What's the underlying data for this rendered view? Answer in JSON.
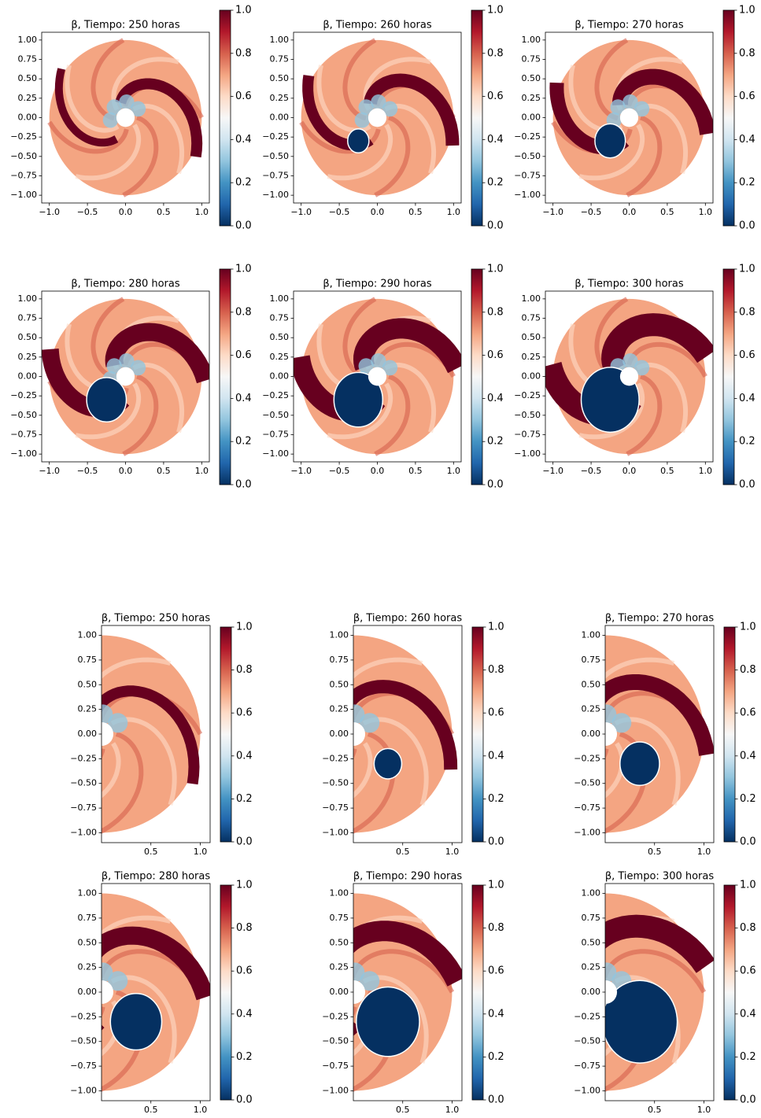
{
  "chart_data": [
    {
      "type": "field",
      "title": "β, Tiempo: 250 horas",
      "xlim": [
        -1.1,
        1.1
      ],
      "ylim": [
        -1.1,
        1.1
      ],
      "xticks": [
        {
          "value": -1,
          "label": "−1.0"
        },
        {
          "value": -0.5,
          "label": "−0.5"
        },
        {
          "value": 0,
          "label": "0.0"
        },
        0.5,
        {
          "value": 1,
          "label": "1.0"
        }
      ],
      "yticks": [
        {
          "value": 1,
          "label": "1.00"
        },
        0.75,
        {
          "value": 0.5,
          "label": "0.50"
        },
        0.25,
        {
          "value": 0,
          "label": "0.00"
        },
        {
          "value": -0.25,
          "label": "−0.25"
        },
        {
          "value": -0.5,
          "label": "−0.50"
        },
        {
          "value": -0.75,
          "label": "−0.75"
        },
        {
          "value": -1,
          "label": "−1.00"
        }
      ],
      "colorbar": {
        "lim": [
          0,
          1
        ],
        "ticks": [
          {
            "value": 0,
            "label": "0.0"
          },
          0.2,
          0.4,
          0.6,
          0.8,
          {
            "value": 1,
            "label": "1.0"
          }
        ],
        "colormap": "RdBu_r"
      }
    },
    {
      "type": "field",
      "title": "β, Tiempo: 260 horas",
      "xlim": [
        -1.1,
        1.1
      ],
      "ylim": [
        -1.1,
        1.1
      ],
      "xticks": [
        {
          "value": -1,
          "label": "−1.0"
        },
        {
          "value": -0.5,
          "label": "−0.5"
        },
        {
          "value": 0,
          "label": "0.0"
        },
        0.5,
        {
          "value": 1,
          "label": "1.0"
        }
      ],
      "yticks": [
        {
          "value": 1,
          "label": "1.00"
        },
        0.75,
        {
          "value": 0.5,
          "label": "0.50"
        },
        0.25,
        {
          "value": 0,
          "label": "0.00"
        },
        {
          "value": -0.25,
          "label": "−0.25"
        },
        {
          "value": -0.5,
          "label": "−0.50"
        },
        {
          "value": -0.75,
          "label": "−0.75"
        },
        {
          "value": -1,
          "label": "−1.00"
        }
      ],
      "colorbar": {
        "lim": [
          0,
          1
        ],
        "ticks": [
          {
            "value": 0,
            "label": "0.0"
          },
          0.2,
          0.4,
          0.6,
          0.8,
          {
            "value": 1,
            "label": "1.0"
          }
        ],
        "colormap": "RdBu_r"
      }
    },
    {
      "type": "field",
      "title": "β, Tiempo: 270 horas",
      "xlim": [
        -1.1,
        1.1
      ],
      "ylim": [
        -1.1,
        1.1
      ],
      "xticks": [
        {
          "value": -1,
          "label": "−1.0"
        },
        {
          "value": -0.5,
          "label": "−0.5"
        },
        {
          "value": 0,
          "label": "0.0"
        },
        0.5,
        {
          "value": 1,
          "label": "1.0"
        }
      ],
      "yticks": [
        {
          "value": 1,
          "label": "1.00"
        },
        0.75,
        {
          "value": 0.5,
          "label": "0.50"
        },
        0.25,
        {
          "value": 0,
          "label": "0.00"
        },
        {
          "value": -0.25,
          "label": "−0.25"
        },
        {
          "value": -0.5,
          "label": "−0.50"
        },
        {
          "value": -0.75,
          "label": "−0.75"
        },
        {
          "value": -1,
          "label": "−1.00"
        }
      ],
      "colorbar": {
        "lim": [
          0,
          1
        ],
        "ticks": [
          {
            "value": 0,
            "label": "0.0"
          },
          0.2,
          0.4,
          0.6,
          0.8,
          {
            "value": 1,
            "label": "1.0"
          }
        ],
        "colormap": "RdBu_r"
      }
    },
    {
      "type": "field",
      "title": "β, Tiempo: 280 horas",
      "xlim": [
        -1.1,
        1.1
      ],
      "ylim": [
        -1.1,
        1.1
      ],
      "xticks": [
        {
          "value": -1,
          "label": "−1.0"
        },
        {
          "value": -0.5,
          "label": "−0.5"
        },
        {
          "value": 0,
          "label": "0.0"
        },
        0.5,
        {
          "value": 1,
          "label": "1.0"
        }
      ],
      "yticks": [
        {
          "value": 1,
          "label": "1.00"
        },
        0.75,
        {
          "value": 0.5,
          "label": "0.50"
        },
        0.25,
        {
          "value": 0,
          "label": "0.00"
        },
        {
          "value": -0.25,
          "label": "−0.25"
        },
        {
          "value": -0.5,
          "label": "−0.50"
        },
        {
          "value": -0.75,
          "label": "−0.75"
        },
        {
          "value": -1,
          "label": "−1.00"
        }
      ],
      "colorbar": {
        "lim": [
          0,
          1
        ],
        "ticks": [
          {
            "value": 0,
            "label": "0.0"
          },
          0.2,
          0.4,
          0.6,
          0.8,
          {
            "value": 1,
            "label": "1.0"
          }
        ],
        "colormap": "RdBu_r"
      }
    },
    {
      "type": "field",
      "title": "β, Tiempo: 290 horas",
      "xlim": [
        -1.1,
        1.1
      ],
      "ylim": [
        -1.1,
        1.1
      ],
      "xticks": [
        {
          "value": -1,
          "label": "−1.0"
        },
        {
          "value": -0.5,
          "label": "−0.5"
        },
        {
          "value": 0,
          "label": "0.0"
        },
        0.5,
        {
          "value": 1,
          "label": "1.0"
        }
      ],
      "yticks": [
        {
          "value": 1,
          "label": "1.00"
        },
        0.75,
        {
          "value": 0.5,
          "label": "0.50"
        },
        0.25,
        {
          "value": 0,
          "label": "0.00"
        },
        {
          "value": -0.25,
          "label": "−0.25"
        },
        {
          "value": -0.5,
          "label": "−0.50"
        },
        {
          "value": -0.75,
          "label": "−0.75"
        },
        {
          "value": -1,
          "label": "−1.00"
        }
      ],
      "colorbar": {
        "lim": [
          0,
          1
        ],
        "ticks": [
          {
            "value": 0,
            "label": "0.0"
          },
          0.2,
          0.4,
          0.6,
          0.8,
          {
            "value": 1,
            "label": "1.0"
          }
        ],
        "colormap": "RdBu_r"
      }
    },
    {
      "type": "field",
      "title": "β, Tiempo: 300 horas",
      "xlim": [
        -1.1,
        1.1
      ],
      "ylim": [
        -1.1,
        1.1
      ],
      "xticks": [
        {
          "value": -1,
          "label": "−1.0"
        },
        {
          "value": -0.5,
          "label": "−0.5"
        },
        {
          "value": 0,
          "label": "0.0"
        },
        0.5,
        {
          "value": 1,
          "label": "1.0"
        }
      ],
      "yticks": [
        {
          "value": 1,
          "label": "1.00"
        },
        0.75,
        {
          "value": 0.5,
          "label": "0.50"
        },
        0.25,
        {
          "value": 0,
          "label": "0.00"
        },
        {
          "value": -0.25,
          "label": "−0.25"
        },
        {
          "value": -0.5,
          "label": "−0.50"
        },
        {
          "value": -0.75,
          "label": "−0.75"
        },
        {
          "value": -1,
          "label": "−1.00"
        }
      ],
      "colorbar": {
        "lim": [
          0,
          1
        ],
        "ticks": [
          {
            "value": 0,
            "label": "0.0"
          },
          0.2,
          0.4,
          0.6,
          0.8,
          {
            "value": 1,
            "label": "1.0"
          }
        ],
        "colormap": "RdBu_r"
      }
    },
    {
      "type": "field",
      "title": "β, Tiempo: 250 horas",
      "xlim": [
        0,
        1.1
      ],
      "ylim": [
        -1.1,
        1.1
      ],
      "xticks": [
        0.5,
        {
          "value": 1,
          "label": "1.0"
        }
      ],
      "yticks": [
        {
          "value": 1,
          "label": "1.00"
        },
        0.75,
        {
          "value": 0.5,
          "label": "0.50"
        },
        0.25,
        {
          "value": 0,
          "label": "0.00"
        },
        {
          "value": -0.25,
          "label": "−0.25"
        },
        {
          "value": -0.5,
          "label": "−0.50"
        },
        {
          "value": -0.75,
          "label": "−0.75"
        },
        {
          "value": -1,
          "label": "−1.00"
        }
      ],
      "colorbar": {
        "lim": [
          0,
          1
        ],
        "ticks": [
          {
            "value": 0,
            "label": "0.0"
          },
          0.2,
          0.4,
          0.6,
          0.8,
          {
            "value": 1,
            "label": "1.0"
          }
        ],
        "colormap": "RdBu_r"
      }
    },
    {
      "type": "field",
      "title": "β, Tiempo: 260 horas",
      "xlim": [
        0,
        1.1
      ],
      "ylim": [
        -1.1,
        1.1
      ],
      "xticks": [
        0.5,
        {
          "value": 1,
          "label": "1.0"
        }
      ],
      "yticks": [
        {
          "value": 1,
          "label": "1.00"
        },
        0.75,
        {
          "value": 0.5,
          "label": "0.50"
        },
        0.25,
        {
          "value": 0,
          "label": "0.00"
        },
        {
          "value": -0.25,
          "label": "−0.25"
        },
        {
          "value": -0.5,
          "label": "−0.50"
        },
        {
          "value": -0.75,
          "label": "−0.75"
        },
        {
          "value": -1,
          "label": "−1.00"
        }
      ],
      "colorbar": {
        "lim": [
          0,
          1
        ],
        "ticks": [
          {
            "value": 0,
            "label": "0.0"
          },
          0.2,
          0.4,
          0.6,
          0.8,
          {
            "value": 1,
            "label": "1.0"
          }
        ],
        "colormap": "RdBu_r"
      }
    },
    {
      "type": "field",
      "title": "β, Tiempo: 270 horas",
      "xlim": [
        0,
        1.1
      ],
      "ylim": [
        -1.1,
        1.1
      ],
      "xticks": [
        0.5,
        {
          "value": 1,
          "label": "1.0"
        }
      ],
      "yticks": [
        {
          "value": 1,
          "label": "1.00"
        },
        0.75,
        {
          "value": 0.5,
          "label": "0.50"
        },
        0.25,
        {
          "value": 0,
          "label": "0.00"
        },
        {
          "value": -0.25,
          "label": "−0.25"
        },
        {
          "value": -0.5,
          "label": "−0.50"
        },
        {
          "value": -0.75,
          "label": "−0.75"
        },
        {
          "value": -1,
          "label": "−1.00"
        }
      ],
      "colorbar": {
        "lim": [
          0,
          1
        ],
        "ticks": [
          {
            "value": 0,
            "label": "0.0"
          },
          0.2,
          0.4,
          0.6,
          0.8,
          {
            "value": 1,
            "label": "1.0"
          }
        ],
        "colormap": "RdBu_r"
      }
    },
    {
      "type": "field",
      "title": "β, Tiempo: 280 horas",
      "xlim": [
        0,
        1.1
      ],
      "ylim": [
        -1.1,
        1.1
      ],
      "xticks": [
        0.5,
        {
          "value": 1,
          "label": "1.0"
        }
      ],
      "yticks": [
        {
          "value": 1,
          "label": "1.00"
        },
        0.75,
        {
          "value": 0.5,
          "label": "0.50"
        },
        0.25,
        {
          "value": 0,
          "label": "0.00"
        },
        {
          "value": -0.25,
          "label": "−0.25"
        },
        {
          "value": -0.5,
          "label": "−0.50"
        },
        {
          "value": -0.75,
          "label": "−0.75"
        },
        {
          "value": -1,
          "label": "−1.00"
        }
      ],
      "colorbar": {
        "lim": [
          0,
          1
        ],
        "ticks": [
          {
            "value": 0,
            "label": "0.0"
          },
          0.2,
          0.4,
          0.6,
          0.8,
          {
            "value": 1,
            "label": "1.0"
          }
        ],
        "colormap": "RdBu_r"
      }
    },
    {
      "type": "field",
      "title": "β, Tiempo: 290 horas",
      "xlim": [
        0,
        1.1
      ],
      "ylim": [
        -1.1,
        1.1
      ],
      "xticks": [
        0.5,
        {
          "value": 1,
          "label": "1.0"
        }
      ],
      "yticks": [
        {
          "value": 1,
          "label": "1.00"
        },
        0.75,
        {
          "value": 0.5,
          "label": "0.50"
        },
        0.25,
        {
          "value": 0,
          "label": "0.00"
        },
        {
          "value": -0.25,
          "label": "−0.25"
        },
        {
          "value": -0.5,
          "label": "−0.50"
        },
        {
          "value": -0.75,
          "label": "−0.75"
        },
        {
          "value": -1,
          "label": "−1.00"
        }
      ],
      "colorbar": {
        "lim": [
          0,
          1
        ],
        "ticks": [
          {
            "value": 0,
            "label": "0.0"
          },
          0.2,
          0.4,
          0.6,
          0.8,
          {
            "value": 1,
            "label": "1.0"
          }
        ],
        "colormap": "RdBu_r"
      }
    },
    {
      "type": "field",
      "title": "β, Tiempo: 300 horas",
      "xlim": [
        0,
        1.1
      ],
      "ylim": [
        -1.1,
        1.1
      ],
      "xticks": [
        0.5,
        {
          "value": 1,
          "label": "1.0"
        }
      ],
      "yticks": [
        {
          "value": 1,
          "label": "1.00"
        },
        0.75,
        {
          "value": 0.5,
          "label": "0.50"
        },
        0.25,
        {
          "value": 0,
          "label": "0.00"
        },
        {
          "value": -0.25,
          "label": "−0.25"
        },
        {
          "value": -0.5,
          "label": "−0.50"
        },
        {
          "value": -0.75,
          "label": "−0.75"
        },
        {
          "value": -1,
          "label": "−1.00"
        }
      ],
      "colorbar": {
        "lim": [
          0,
          1
        ],
        "ticks": [
          {
            "value": 0,
            "label": "0.0"
          },
          0.2,
          0.4,
          0.6,
          0.8,
          {
            "value": 1,
            "label": "1.0"
          }
        ],
        "colormap": "RdBu_r"
      }
    }
  ]
}
